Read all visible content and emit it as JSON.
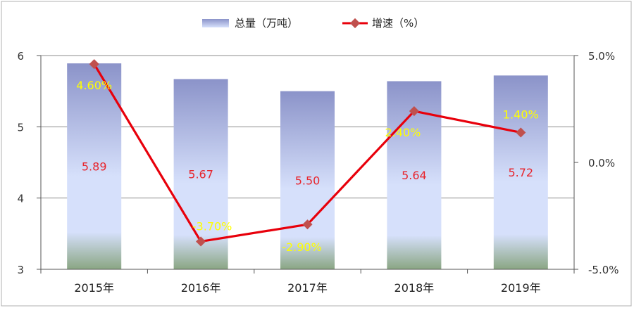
{
  "chart_data": {
    "type": "bar",
    "categories": [
      "2015年",
      "2016年",
      "2017年",
      "2018年",
      "2019年"
    ],
    "series": [
      {
        "name": "总量（万吨）",
        "type": "bar",
        "axis": "left",
        "values": [
          5.89,
          5.67,
          5.5,
          5.64,
          5.72
        ],
        "labels": [
          "5.89",
          "5.67",
          "5.50",
          "5.64",
          "5.72"
        ],
        "label_color": "#e8242c"
      },
      {
        "name": "增速（%）",
        "type": "line",
        "axis": "right",
        "values": [
          4.6,
          -3.7,
          -2.9,
          2.4,
          1.4
        ],
        "labels": [
          "4.60%",
          "-3.70%",
          "-2.90%",
          "2.40%",
          "1.40%"
        ],
        "line_color": "#e8000b",
        "marker_color": "#c0504d",
        "label_color": "#ffff00"
      }
    ],
    "y_left": {
      "ylim": [
        3,
        6
      ],
      "ticks": [
        "3",
        "4",
        "5",
        "6"
      ]
    },
    "y_right": {
      "ylim": [
        -5,
        5
      ],
      "ticks": [
        "-5.0%",
        "0.0%",
        "5.0%"
      ]
    },
    "grid": true,
    "legend_position": "top-center",
    "colors": {
      "bar_top": "#8b93c9",
      "bar_mid": "#d6e0fb",
      "bar_bottom": "#8aa683",
      "grid": "#8c8c8c",
      "frame": "#b0b0b0"
    }
  }
}
